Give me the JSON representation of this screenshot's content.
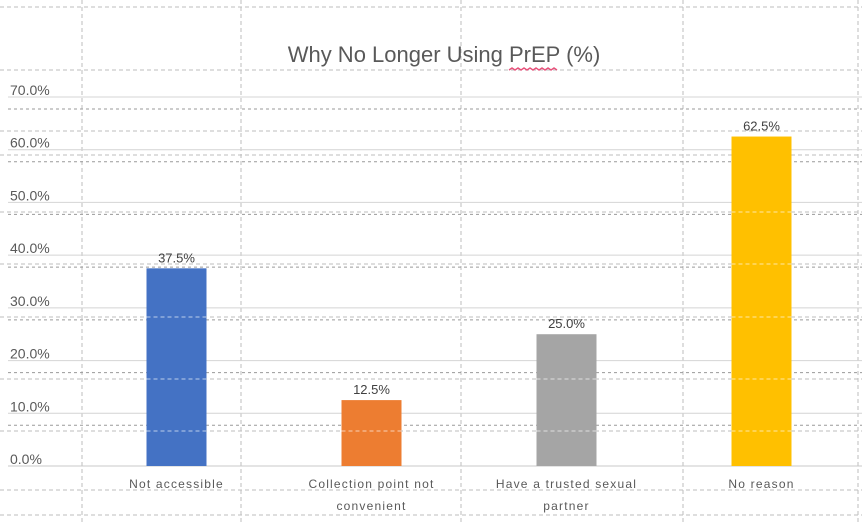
{
  "chart_data": {
    "type": "bar",
    "title": "Why No Longer Using PrEP (%)",
    "title_underlined_word": "PrEP",
    "categories": [
      [
        "Not accessible"
      ],
      [
        "Collection point not",
        "convenient"
      ],
      [
        "Have a trusted sexual",
        "partner"
      ],
      [
        "No reason"
      ]
    ],
    "values": [
      37.5,
      12.5,
      25.0,
      62.5
    ],
    "value_labels": [
      "37.5%",
      "12.5%",
      "25.0%",
      "62.5%"
    ],
    "colors": [
      "#4472C4",
      "#ED7D31",
      "#A5A5A5",
      "#FFC000"
    ],
    "ylim": [
      0,
      70
    ],
    "yticks": [
      0,
      10,
      20,
      30,
      40,
      50,
      60,
      70
    ],
    "ytick_labels": [
      "0.0%",
      "10.0%",
      "20.0%",
      "30.0%",
      "40.0%",
      "50.0%",
      "60.0%",
      "70.0%"
    ],
    "xlabel": "",
    "ylabel": "",
    "grid": true,
    "legend": false,
    "spellcheck_color": "#e8507a"
  }
}
